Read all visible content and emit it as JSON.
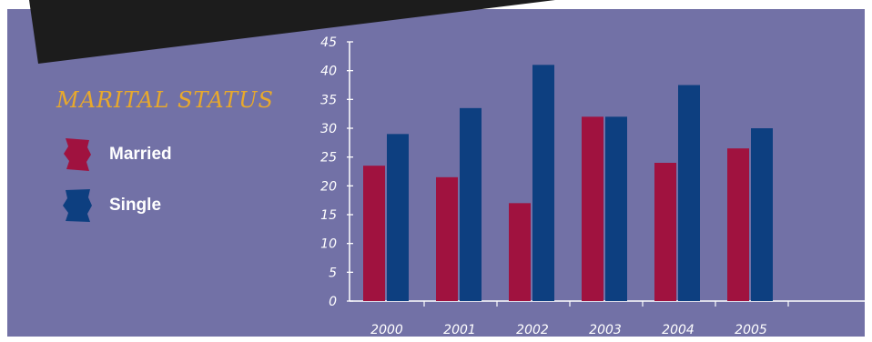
{
  "legend": {
    "title": "MARITAL STATUS",
    "items": [
      {
        "label": "Married",
        "color": "#a0123f"
      },
      {
        "label": "Single",
        "color": "#0d3f80"
      }
    ]
  },
  "colors": {
    "background": "#7271a6",
    "banner": "#1c1c1c",
    "title": "#e8a92c",
    "axis": "#ffffff"
  },
  "chart_data": {
    "type": "bar",
    "categories": [
      "2000",
      "2001",
      "2002",
      "2003",
      "2004",
      "2005"
    ],
    "series": [
      {
        "name": "Married",
        "values": [
          23.5,
          21.5,
          17,
          32,
          24,
          26.5
        ],
        "color": "#a0123f"
      },
      {
        "name": "Single",
        "values": [
          29,
          33.5,
          41,
          32,
          37.5,
          30
        ],
        "color": "#0d3f80"
      }
    ],
    "ylim": [
      0,
      45
    ],
    "yticks": [
      0,
      5,
      10,
      15,
      20,
      25,
      30,
      35,
      40,
      45
    ],
    "grid": false,
    "legend_position": "left"
  }
}
